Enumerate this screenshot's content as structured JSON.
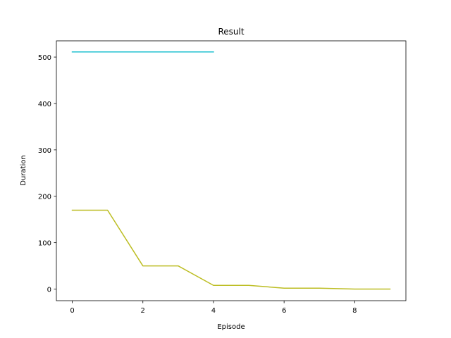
{
  "chart_data": {
    "type": "line",
    "title": "Result",
    "xlabel": "Episode",
    "ylabel": "Duration",
    "xlim": [
      -0.45,
      9.45
    ],
    "ylim": [
      -25,
      535
    ],
    "xticks": [
      0,
      2,
      4,
      6,
      8
    ],
    "yticks": [
      0,
      100,
      200,
      300,
      400,
      500
    ],
    "grid": false,
    "series": [
      {
        "color": "#17becf",
        "x": [
          0,
          1,
          2,
          3,
          4
        ],
        "values": [
          511,
          511,
          511,
          511,
          511
        ]
      },
      {
        "color": "#bcbd22",
        "x": [
          0,
          1,
          2,
          3,
          4,
          5,
          6,
          7,
          8,
          9
        ],
        "values": [
          170,
          170,
          50,
          50,
          8,
          8,
          2,
          2,
          0,
          0
        ]
      }
    ]
  }
}
